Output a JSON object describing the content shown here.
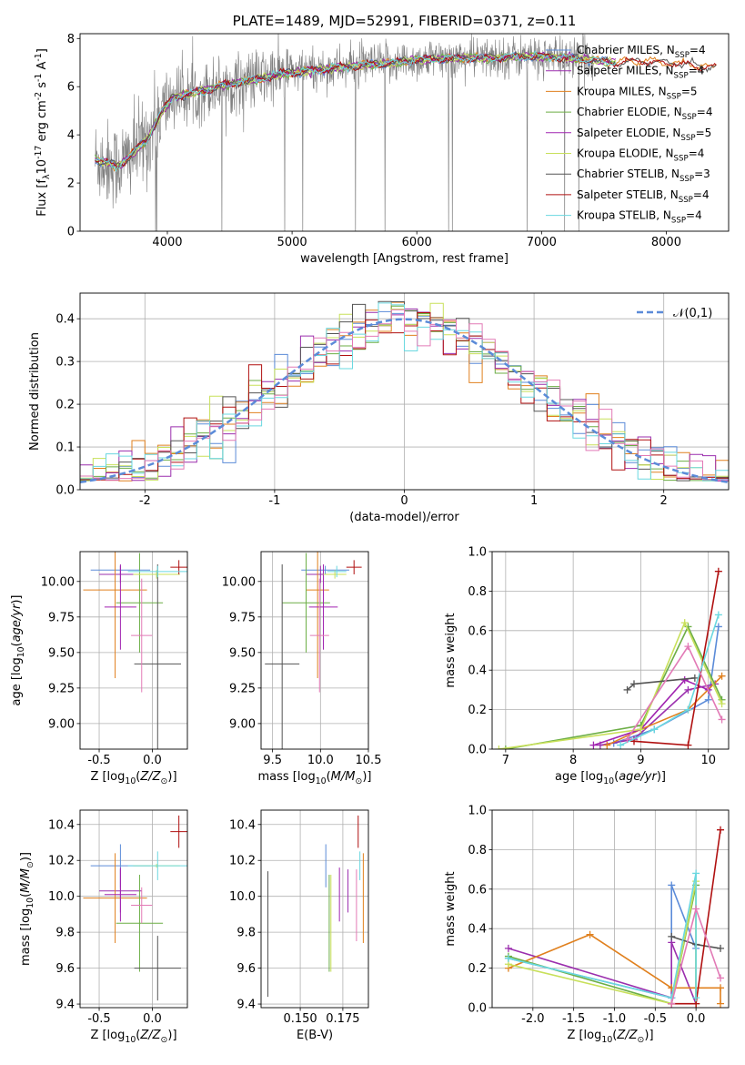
{
  "colors": {
    "c1": "#5b8bd8",
    "c2": "#9b2fae",
    "c3": "#e0801e",
    "c4": "#6cae45",
    "c5": "#a023b0",
    "c6": "#c8e05a",
    "c7": "#555555",
    "c8": "#b01010",
    "c9": "#6ad8e0",
    "pink": "#e27ab6",
    "gray": "#808080",
    "normal": "#5b8bd8"
  },
  "chart_data": [
    {
      "id": "spectrum",
      "type": "line",
      "title": "PLATE=1489, MJD=52991, FIBERID=0371, z=0.11",
      "xlabel": "wavelength [Angstrom, rest frame]",
      "ylabel": "Flux [f$_\\lambda$10$^{-17}$ erg cm$^{-2}$ s$^{-1}$ A$^{-1}$]",
      "xlim": [
        3300,
        8500
      ],
      "ylim": [
        0,
        8.2
      ],
      "xticks": [
        4000,
        5000,
        6000,
        7000,
        8000
      ],
      "yticks": [
        0,
        2,
        4,
        6,
        8
      ],
      "legend_position": "top-right",
      "legend": [
        {
          "label": "Chabrier MILES, N$_{SSP}$=4",
          "color": "c1"
        },
        {
          "label": "Salpeter MILES, N$_{SSP}$=4",
          "color": "c2"
        },
        {
          "label": "Kroupa MILES, N$_{SSP}$=5",
          "color": "c3"
        },
        {
          "label": "Chabrier ELODIE, N$_{SSP}$=4",
          "color": "c4"
        },
        {
          "label": "Salpeter ELODIE, N$_{SSP}$=5",
          "color": "c5"
        },
        {
          "label": "Kroupa ELODIE, N$_{SSP}$=4",
          "color": "c6"
        },
        {
          "label": "Chabrier STELIB, N$_{SSP}$=3",
          "color": "c7"
        },
        {
          "label": "Salpeter STELIB, N$_{SSP}$=4",
          "color": "c8"
        },
        {
          "label": "Kroupa STELIB, N$_{SSP}$=4",
          "color": "c9"
        }
      ],
      "model_continuum": {
        "x": [
          3400,
          3600,
          3700,
          3850,
          3950,
          4050,
          4200,
          4400,
          4600,
          4800,
          5000,
          5200,
          5400,
          5600,
          5800,
          6000,
          6200,
          6400,
          6600,
          6800,
          7000,
          7200,
          7400,
          7600,
          7800,
          8000,
          8200,
          8400
        ],
        "y": [
          3.0,
          2.7,
          3.1,
          3.9,
          4.9,
          5.6,
          5.7,
          6.0,
          6.2,
          6.4,
          6.6,
          6.7,
          6.8,
          6.9,
          7.0,
          7.1,
          7.15,
          7.2,
          7.2,
          7.25,
          7.25,
          7.2,
          7.1,
          7.0,
          7.05,
          7.0,
          6.9,
          6.8
        ]
      }
    },
    {
      "id": "residuals",
      "type": "histogram",
      "xlabel": "(data-model)/error",
      "ylabel": "Normed distribution",
      "xlim": [
        -2.5,
        2.5
      ],
      "ylim": [
        0,
        0.46
      ],
      "xticks": [
        -2,
        -1,
        0,
        1,
        2
      ],
      "yticks": [
        0.0,
        0.1,
        0.2,
        0.3,
        0.4
      ],
      "grid": true,
      "legend": [
        {
          "label": "$\\mathcal{N}(0,1)$",
          "color": "normal",
          "style": "dashed"
        }
      ],
      "legend_position": "top-right",
      "bin_width": 0.1,
      "series_colors": [
        "c1",
        "c3",
        "c4",
        "c2",
        "c6",
        "c7",
        "c8",
        "c9",
        "pink"
      ]
    },
    {
      "id": "age-vs-Z",
      "type": "errorbar",
      "xlabel": "Z [log$_{10}$($Z/Z_\\odot$)]",
      "ylabel": "age  [log$_{10}$($age/yr$)]",
      "xlim": [
        -0.68,
        0.33
      ],
      "ylim": [
        8.82,
        10.21
      ],
      "xticks": [
        -0.5,
        0.0
      ],
      "yticks": [
        9.0,
        9.25,
        9.5,
        9.75,
        10.0
      ],
      "grid": true,
      "points": [
        {
          "x": -0.3,
          "xerr": 0.28,
          "y": 10.08,
          "yerr": 0.03,
          "color": "c1"
        },
        {
          "x": -0.3,
          "xerr": 0.2,
          "y": 10.05,
          "yerr": 0.06,
          "color": "c2"
        },
        {
          "x": -0.35,
          "xerr": 0.3,
          "y": 9.94,
          "yerr": 0.62,
          "color": "c3"
        },
        {
          "x": -0.12,
          "xerr": 0.22,
          "y": 9.85,
          "yerr": 0.35,
          "color": "c4"
        },
        {
          "x": -0.3,
          "xerr": 0.15,
          "y": 9.82,
          "yerr": 0.3,
          "color": "c5"
        },
        {
          "x": 0.04,
          "xerr": 0.22,
          "y": 10.05,
          "yerr": 0.03,
          "color": "c6"
        },
        {
          "x": 0.05,
          "xerr": 0.22,
          "y": 9.42,
          "yerr": 0.7,
          "color": "c7"
        },
        {
          "x": 0.25,
          "xerr": 0.08,
          "y": 10.1,
          "yerr": 0.05,
          "color": "c8"
        },
        {
          "x": 0.05,
          "xerr": 0.28,
          "y": 10.07,
          "yerr": 0.04,
          "color": "c9"
        },
        {
          "x": -0.1,
          "xerr": 0.1,
          "y": 9.62,
          "yerr": 0.4,
          "color": "pink"
        }
      ]
    },
    {
      "id": "age-vs-mass",
      "type": "errorbar",
      "xlabel": "mass [log$_{10}$($M/M_\\odot$)]",
      "ylabel": "",
      "xlim": [
        9.38,
        10.5
      ],
      "ylim": [
        8.82,
        10.21
      ],
      "xticks": [
        9.5,
        10.0,
        10.5
      ],
      "yticks": [
        9.0,
        9.25,
        9.5,
        9.75,
        10.0
      ],
      "grid": true,
      "points": [
        {
          "x": 10.05,
          "xerr": 0.25,
          "y": 10.08,
          "yerr": 0.03,
          "color": "c1"
        },
        {
          "x": 10.0,
          "xerr": 0.15,
          "y": 10.05,
          "yerr": 0.06,
          "color": "c2"
        },
        {
          "x": 9.97,
          "xerr": 0.12,
          "y": 9.94,
          "yerr": 0.62,
          "color": "c3"
        },
        {
          "x": 9.85,
          "xerr": 0.25,
          "y": 9.85,
          "yerr": 0.35,
          "color": "c4"
        },
        {
          "x": 10.03,
          "xerr": 0.15,
          "y": 9.82,
          "yerr": 0.3,
          "color": "c5"
        },
        {
          "x": 10.15,
          "xerr": 0.12,
          "y": 10.05,
          "yerr": 0.03,
          "color": "c6"
        },
        {
          "x": 9.6,
          "xerr": 0.18,
          "y": 9.42,
          "yerr": 0.7,
          "color": "c7"
        },
        {
          "x": 10.35,
          "xerr": 0.08,
          "y": 10.1,
          "yerr": 0.05,
          "color": "c8"
        },
        {
          "x": 10.17,
          "xerr": 0.1,
          "y": 10.07,
          "yerr": 0.04,
          "color": "c9"
        },
        {
          "x": 9.99,
          "xerr": 0.1,
          "y": 9.62,
          "yerr": 0.4,
          "color": "pink"
        }
      ]
    },
    {
      "id": "mass-weight-vs-age",
      "type": "line",
      "xlabel": "age  [log$_{10}$($age/yr$)]",
      "ylabel": "mass weight",
      "xlim": [
        6.8,
        10.3
      ],
      "ylim": [
        0,
        1.0
      ],
      "xticks": [
        7,
        8,
        9,
        10
      ],
      "yticks": [
        0.0,
        0.2,
        0.4,
        0.6,
        0.8,
        1.0
      ],
      "grid": true,
      "series": [
        {
          "color": "c1",
          "x": [
            8.6,
            9.2,
            10.0,
            10.15
          ],
          "y": [
            0.03,
            0.1,
            0.25,
            0.62
          ]
        },
        {
          "color": "c2",
          "x": [
            8.4,
            8.9,
            9.7,
            10.1
          ],
          "y": [
            0.02,
            0.05,
            0.3,
            0.33
          ]
        },
        {
          "color": "c3",
          "x": [
            8.5,
            9.0,
            9.7,
            10.2
          ],
          "y": [
            0.02,
            0.1,
            0.2,
            0.37
          ]
        },
        {
          "color": "c4",
          "x": [
            7.0,
            9.0,
            9.7,
            10.2
          ],
          "y": [
            0.0,
            0.12,
            0.62,
            0.25
          ]
        },
        {
          "color": "c5",
          "x": [
            8.3,
            9.0,
            9.65,
            10.0
          ],
          "y": [
            0.02,
            0.1,
            0.35,
            0.3
          ]
        },
        {
          "color": "c6",
          "x": [
            6.9,
            9.0,
            9.65,
            10.2
          ],
          "y": [
            0.0,
            0.1,
            0.64,
            0.23
          ]
        },
        {
          "color": "c7",
          "x": [
            8.8,
            8.9,
            9.8
          ],
          "y": [
            0.3,
            0.33,
            0.36
          ]
        },
        {
          "color": "c8",
          "x": [
            8.9,
            9.7,
            10.15
          ],
          "y": [
            0.04,
            0.02,
            0.9
          ]
        },
        {
          "color": "c9",
          "x": [
            8.7,
            9.2,
            9.7,
            10.15
          ],
          "y": [
            0.02,
            0.1,
            0.2,
            0.68
          ]
        },
        {
          "color": "pink",
          "x": [
            8.8,
            9.7,
            10.2
          ],
          "y": [
            0.05,
            0.52,
            0.15
          ]
        }
      ]
    },
    {
      "id": "mass-vs-Z",
      "type": "errorbar",
      "xlabel": "Z [log$_{10}$($Z/Z_\\odot$)]",
      "ylabel": "mass [log$_{10}$($M/M_\\odot$)]",
      "xlim": [
        -0.68,
        0.33
      ],
      "ylim": [
        9.38,
        10.48
      ],
      "xticks": [
        -0.5,
        0.0
      ],
      "yticks": [
        9.4,
        9.6,
        9.8,
        10.0,
        10.2,
        10.4
      ],
      "grid": true,
      "points": [
        {
          "x": -0.3,
          "xerr": 0.28,
          "y": 10.17,
          "yerr": 0.12,
          "color": "c1"
        },
        {
          "x": -0.3,
          "xerr": 0.2,
          "y": 10.03,
          "yerr": 0.12,
          "color": "c2"
        },
        {
          "x": -0.35,
          "xerr": 0.3,
          "y": 9.99,
          "yerr": 0.25,
          "color": "c3"
        },
        {
          "x": -0.12,
          "xerr": 0.22,
          "y": 9.85,
          "yerr": 0.27,
          "color": "c4"
        },
        {
          "x": -0.3,
          "xerr": 0.15,
          "y": 10.01,
          "yerr": 0.15,
          "color": "c5"
        },
        {
          "x": 0.04,
          "xerr": 0.22,
          "y": 10.17,
          "yerr": 0.01,
          "color": "c6"
        },
        {
          "x": 0.05,
          "xerr": 0.22,
          "y": 9.6,
          "yerr": 0.18,
          "color": "c7"
        },
        {
          "x": 0.25,
          "xerr": 0.08,
          "y": 10.36,
          "yerr": 0.09,
          "color": "c8"
        },
        {
          "x": 0.05,
          "xerr": 0.28,
          "y": 10.17,
          "yerr": 0.08,
          "color": "c9"
        },
        {
          "x": -0.1,
          "xerr": 0.1,
          "y": 9.95,
          "yerr": 0.1,
          "color": "pink"
        }
      ]
    },
    {
      "id": "mass-vs-EBV",
      "type": "errorbar",
      "xlabel": "E(B-V)",
      "ylabel": "",
      "xlim": [
        0.127,
        0.19
      ],
      "ylim": [
        9.38,
        10.48
      ],
      "xticks": [
        0.15,
        0.175
      ],
      "yticks": [
        9.4,
        9.6,
        9.8,
        10.0,
        10.2,
        10.4
      ],
      "grid": true,
      "points": [
        {
          "x": 0.165,
          "y": 10.17,
          "yerr": 0.12,
          "color": "c1"
        },
        {
          "x": 0.178,
          "y": 10.03,
          "yerr": 0.12,
          "color": "c2"
        },
        {
          "x": 0.187,
          "y": 9.99,
          "yerr": 0.25,
          "color": "c3"
        },
        {
          "x": 0.167,
          "y": 9.85,
          "yerr": 0.27,
          "color": "c4"
        },
        {
          "x": 0.173,
          "y": 10.01,
          "yerr": 0.15,
          "color": "c5"
        },
        {
          "x": 0.168,
          "y": 9.85,
          "yerr": 0.27,
          "color": "c6"
        },
        {
          "x": 0.131,
          "y": 9.79,
          "yerr": 0.35,
          "color": "c7"
        },
        {
          "x": 0.184,
          "y": 10.36,
          "yerr": 0.09,
          "color": "c8"
        },
        {
          "x": 0.185,
          "y": 10.17,
          "yerr": 0.08,
          "color": "c9"
        },
        {
          "x": 0.183,
          "y": 9.95,
          "yerr": 0.2,
          "color": "pink"
        }
      ]
    },
    {
      "id": "mass-weight-vs-Z",
      "type": "line",
      "xlabel": "Z [log$_{10}$($Z/Z_\\odot$)]",
      "ylabel": "mass weight",
      "xlim": [
        -2.5,
        0.4
      ],
      "ylim": [
        0,
        1.0
      ],
      "xticks": [
        -2.0,
        -1.5,
        -1.0,
        -0.5,
        0.0
      ],
      "yticks": [
        0.0,
        0.2,
        0.4,
        0.6,
        0.8,
        1.0
      ],
      "grid": true,
      "series": [
        {
          "color": "c1",
          "x": [
            -2.3,
            -0.3,
            -0.3,
            0.0,
            0.0
          ],
          "y": [
            0.25,
            0.05,
            0.62,
            0.3,
            0.02
          ]
        },
        {
          "color": "c2",
          "x": [
            -2.3,
            -0.3,
            -0.3,
            0.0
          ],
          "y": [
            0.3,
            0.05,
            0.33,
            0.02
          ]
        },
        {
          "color": "c3",
          "x": [
            -2.3,
            -1.3,
            -0.3,
            0.3,
            0.3
          ],
          "y": [
            0.2,
            0.37,
            0.1,
            0.1,
            0.02
          ]
        },
        {
          "color": "c4",
          "x": [
            -2.3,
            -0.3,
            0.0,
            0.0
          ],
          "y": [
            0.26,
            0.02,
            0.62,
            0.02
          ]
        },
        {
          "color": "c6",
          "x": [
            -2.3,
            -0.3,
            0.0,
            0.0
          ],
          "y": [
            0.22,
            0.02,
            0.64,
            0.02
          ]
        },
        {
          "color": "c7",
          "x": [
            -0.3,
            0.0,
            0.3
          ],
          "y": [
            0.36,
            0.32,
            0.3
          ]
        },
        {
          "color": "c8",
          "x": [
            -0.3,
            0.0,
            0.3
          ],
          "y": [
            0.02,
            0.02,
            0.9
          ]
        },
        {
          "color": "c9",
          "x": [
            -2.3,
            -0.3,
            0.0,
            0.0
          ],
          "y": [
            0.25,
            0.05,
            0.68,
            0.05
          ]
        },
        {
          "color": "pink",
          "x": [
            -0.3,
            0.0,
            0.3
          ],
          "y": [
            0.02,
            0.5,
            0.15
          ]
        }
      ]
    }
  ]
}
